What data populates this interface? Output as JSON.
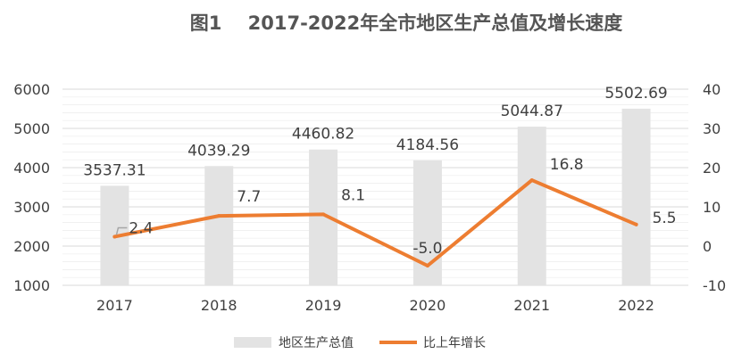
{
  "chart_data": {
    "type": "bar+line",
    "title": "图1    2017-2022年全市地区生产总值及增长速度",
    "categories": [
      "2017",
      "2018",
      "2019",
      "2020",
      "2021",
      "2022"
    ],
    "series": [
      {
        "name": "地区生产总值",
        "type": "bar",
        "axis": "left",
        "values": [
          3537.31,
          4039.29,
          4460.82,
          4184.56,
          5044.87,
          5502.69
        ],
        "labels": [
          "3537.31",
          "4039.29",
          "4460.82",
          "4184.56",
          "5044.87",
          "5502.69"
        ],
        "color": "#e3e3e3"
      },
      {
        "name": "比上年增长",
        "type": "line",
        "axis": "right",
        "values": [
          2.4,
          7.7,
          8.1,
          -5.0,
          16.8,
          5.5
        ],
        "labels": [
          "2.4",
          "7.7",
          "8.1",
          "-5.0",
          "16.8",
          "5.5"
        ],
        "color": "#ed7d31"
      }
    ],
    "y_left": {
      "range": [
        1000,
        6000
      ],
      "ticks": [
        "6000",
        "5000",
        "4000",
        "3000",
        "2000",
        "1000"
      ],
      "tick_values": [
        6000,
        5000,
        4000,
        3000,
        2000,
        1000
      ]
    },
    "y_right": {
      "range": [
        -10,
        40
      ],
      "ticks": [
        "40",
        "30",
        "20",
        "10",
        "0",
        "-10"
      ],
      "tick_values": [
        40,
        30,
        20,
        10,
        0,
        -10
      ]
    },
    "grid": true,
    "legend_position": "bottom",
    "text_color": "#404040",
    "grid_color": "#d9d9d9"
  }
}
